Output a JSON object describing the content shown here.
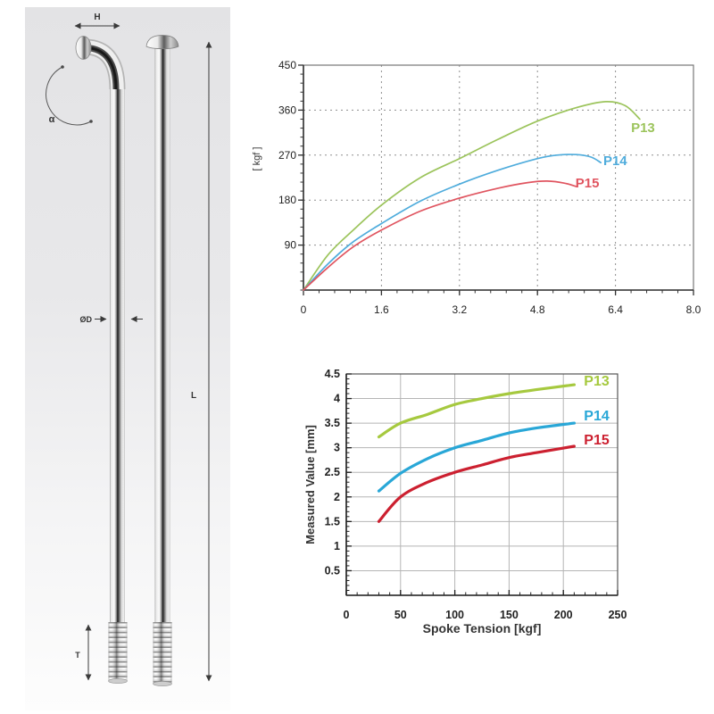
{
  "page": {
    "background": "#ffffff"
  },
  "spoke_diagram": {
    "labels": {
      "head_width": "H",
      "bend_angle": "α",
      "diameter": "ØD",
      "length": "L",
      "thread_length": "T"
    }
  },
  "chart_data": [
    {
      "id": "top_chart",
      "type": "line",
      "title": "",
      "xlabel": "",
      "ylabel": "[ kgf ]",
      "xlim": [
        0,
        8
      ],
      "ylim": [
        0,
        450
      ],
      "xticks": [
        0,
        1.6,
        3.2,
        4.8,
        6.4,
        8
      ],
      "xtick_labels": [
        "0",
        "1.6",
        "3.2",
        "4.8",
        "6.4",
        "8.0"
      ],
      "yticks": [
        90,
        180,
        270,
        360,
        450
      ],
      "ytick_labels": [
        "90",
        "180",
        "270",
        "360",
        "450"
      ],
      "x_minor_step": 0.32,
      "y_minor_step": 18,
      "grid": "dashed",
      "legend": "inline",
      "series": [
        {
          "name": "P13",
          "color": "#9CC45C",
          "points": [
            [
              0,
              0
            ],
            [
              0.5,
              70
            ],
            [
              1,
              118
            ],
            [
              1.6,
              170
            ],
            [
              2.4,
              225
            ],
            [
              3.2,
              263
            ],
            [
              4,
              302
            ],
            [
              4.8,
              338
            ],
            [
              5.6,
              365
            ],
            [
              6.2,
              377
            ],
            [
              6.6,
              369
            ],
            [
              6.9,
              342
            ]
          ],
          "label_at": [
            6.72,
            316
          ]
        },
        {
          "name": "P14",
          "color": "#4FACDC",
          "points": [
            [
              0,
              0
            ],
            [
              0.5,
              52
            ],
            [
              1,
              95
            ],
            [
              1.6,
              133
            ],
            [
              2.4,
              178
            ],
            [
              3.2,
              212
            ],
            [
              4,
              240
            ],
            [
              4.8,
              263
            ],
            [
              5.2,
              270
            ],
            [
              5.6,
              271
            ],
            [
              5.9,
              266
            ],
            [
              6.1,
              255
            ]
          ],
          "label_at": [
            6.15,
            250
          ]
        },
        {
          "name": "P15",
          "color": "#E05560",
          "points": [
            [
              0,
              0
            ],
            [
              0.5,
              45
            ],
            [
              1,
              85
            ],
            [
              1.6,
              120
            ],
            [
              2.4,
              158
            ],
            [
              3.2,
              184
            ],
            [
              4,
              204
            ],
            [
              4.6,
              215
            ],
            [
              5,
              218
            ],
            [
              5.35,
              214
            ],
            [
              5.6,
              207
            ]
          ],
          "label_at": [
            5.58,
            205
          ]
        }
      ]
    },
    {
      "id": "bottom_chart",
      "type": "line",
      "title": "",
      "xlabel": "Spoke Tension [kgf]",
      "ylabel": "Measured Value [mm]",
      "xlim": [
        0,
        250
      ],
      "ylim": [
        0,
        4.5
      ],
      "xticks": [
        0,
        50,
        100,
        150,
        200,
        250
      ],
      "xtick_labels": [
        "0",
        "50",
        "100",
        "150",
        "200",
        "250"
      ],
      "yticks": [
        0.5,
        1,
        1.5,
        2,
        2.5,
        3,
        3.5,
        4,
        4.5
      ],
      "ytick_labels": [
        "0.5",
        "1",
        "1.5",
        "2",
        "2.5",
        "3",
        "3.5",
        "4",
        "4.5"
      ],
      "x_minor_step": 10,
      "y_minor_step": 0.1,
      "grid": "solid",
      "legend": "inline",
      "series": [
        {
          "name": "P13",
          "color": "#A6C93F",
          "points": [
            [
              30,
              3.22
            ],
            [
              50,
              3.5
            ],
            [
              75,
              3.68
            ],
            [
              100,
              3.88
            ],
            [
              125,
              4
            ],
            [
              150,
              4.1
            ],
            [
              175,
              4.18
            ],
            [
              210,
              4.28
            ]
          ],
          "label_at": [
            219,
            4.26
          ]
        },
        {
          "name": "P14",
          "color": "#29A7D7",
          "points": [
            [
              30,
              2.12
            ],
            [
              50,
              2.48
            ],
            [
              75,
              2.78
            ],
            [
              100,
              3
            ],
            [
              125,
              3.15
            ],
            [
              150,
              3.3
            ],
            [
              175,
              3.4
            ],
            [
              210,
              3.5
            ]
          ],
          "label_at": [
            219,
            3.56
          ]
        },
        {
          "name": "P15",
          "color": "#CC2030",
          "points": [
            [
              30,
              1.5
            ],
            [
              50,
              2
            ],
            [
              75,
              2.3
            ],
            [
              100,
              2.5
            ],
            [
              125,
              2.65
            ],
            [
              150,
              2.8
            ],
            [
              175,
              2.9
            ],
            [
              210,
              3.03
            ]
          ],
          "label_at": [
            219,
            3.07
          ]
        }
      ]
    }
  ]
}
